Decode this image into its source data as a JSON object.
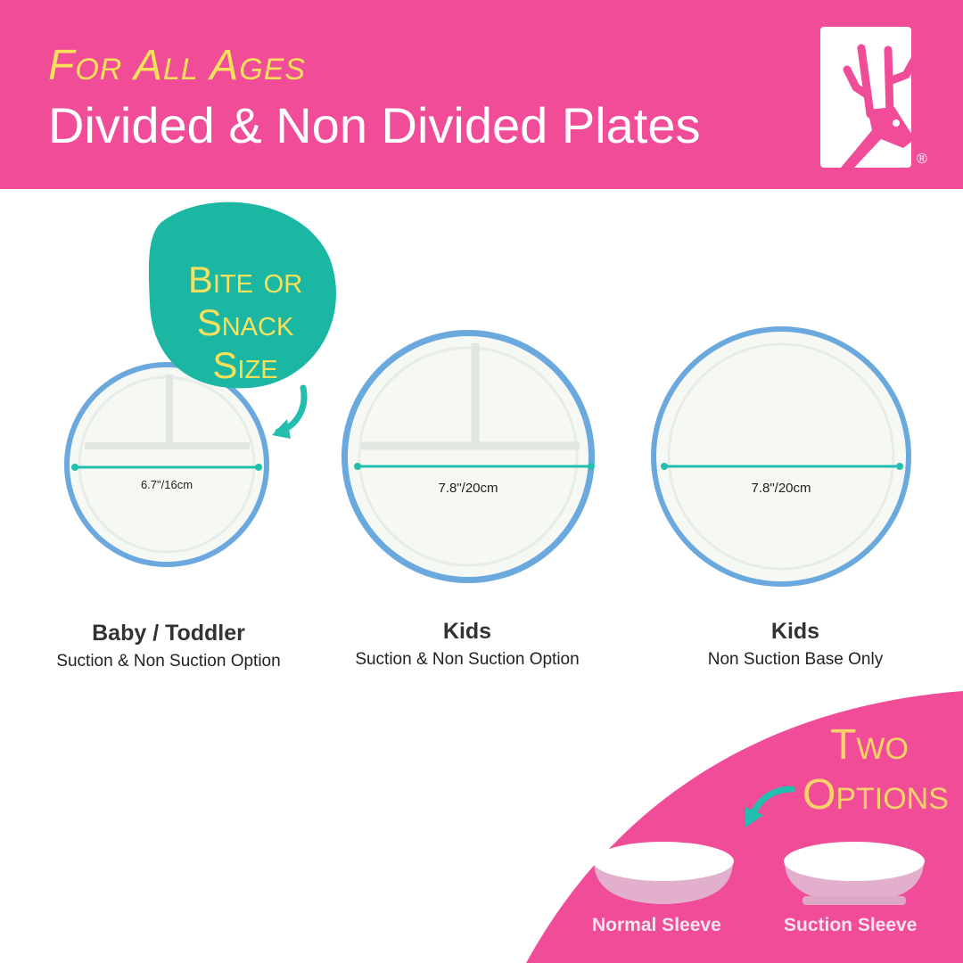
{
  "header": {
    "tagline": "For All Ages",
    "title": "Divided & Non Divided Plates",
    "registered": "®"
  },
  "badge": {
    "line1": "Bite or",
    "line2": "Snack Size"
  },
  "plates": [
    {
      "size": "6.7\"/16cm",
      "title": "Baby / Toddler",
      "subtitle": "Suction & Non Suction Option",
      "divided": true
    },
    {
      "size": "7.8\"/20cm",
      "title": "Kids",
      "subtitle": "Suction & Non Suction Option",
      "divided": true
    },
    {
      "size": "7.8\"/20cm",
      "title": "Kids",
      "subtitle": "Non Suction Base Only",
      "divided": false
    }
  ],
  "options": {
    "line1": "Two",
    "line2": "Options",
    "sleeves": [
      "Normal Sleeve",
      "Suction Sleeve"
    ]
  },
  "colors": {
    "brand_pink": "#f04c97",
    "teal": "#22bfae",
    "yellow": "#f7e05a",
    "plate_rim": "#6aa8de"
  }
}
